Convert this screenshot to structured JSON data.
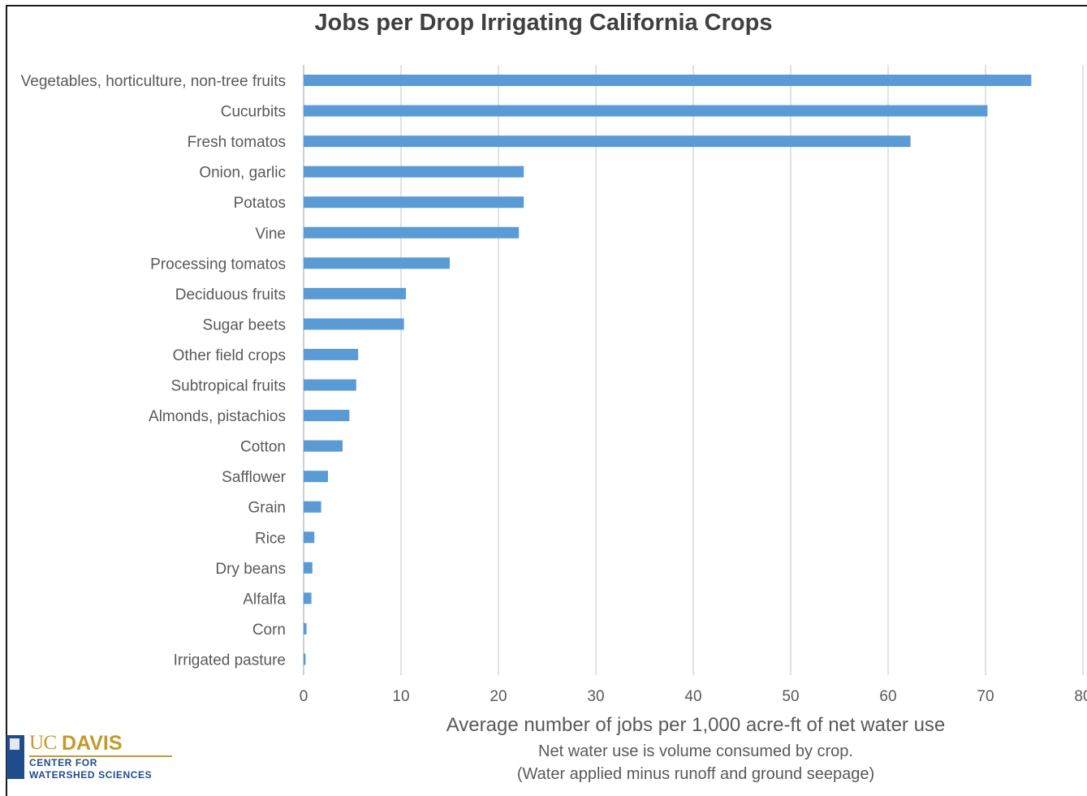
{
  "chart_data": {
    "type": "bar",
    "orientation": "horizontal",
    "title": "Jobs per Drop Irrigating California Crops",
    "xlabel": "Average number of jobs per 1,000 acre-ft of net water use",
    "xlabel_notes": [
      "Net water use is volume consumed by crop.",
      "(Water applied minus runoff and ground seepage)"
    ],
    "categories": [
      "Vegetables, horticulture, non-tree fruits",
      "Cucurbits",
      "Fresh tomatos",
      "Onion, garlic",
      "Potatos",
      "Vine",
      "Processing tomatos",
      "Deciduous fruits",
      "Sugar beets",
      "Other field crops",
      "Subtropical fruits",
      "Almonds, pistachios",
      "Cotton",
      "Safflower",
      "Grain",
      "Rice",
      "Dry beans",
      "Alfalfa",
      "Corn",
      "Irrigated pasture"
    ],
    "values": [
      74.7,
      70.2,
      62.3,
      22.6,
      22.6,
      22.1,
      15.0,
      10.5,
      10.3,
      5.6,
      5.4,
      4.7,
      4.0,
      2.5,
      1.8,
      1.1,
      0.9,
      0.8,
      0.3,
      0.2
    ],
    "xlim": [
      0,
      80
    ],
    "xticks": [
      "0",
      "10",
      "20",
      "30",
      "40",
      "50",
      "60",
      "70",
      "80"
    ],
    "grid": "vertical",
    "legend": "none",
    "bar_color": "#5b9bd5",
    "grid_color": "#d9d9d9"
  },
  "logo": {
    "uc": "UC",
    "davis": "DAVIS",
    "line1": "CENTER FOR",
    "line2": "WATERSHED SCIENCES"
  }
}
